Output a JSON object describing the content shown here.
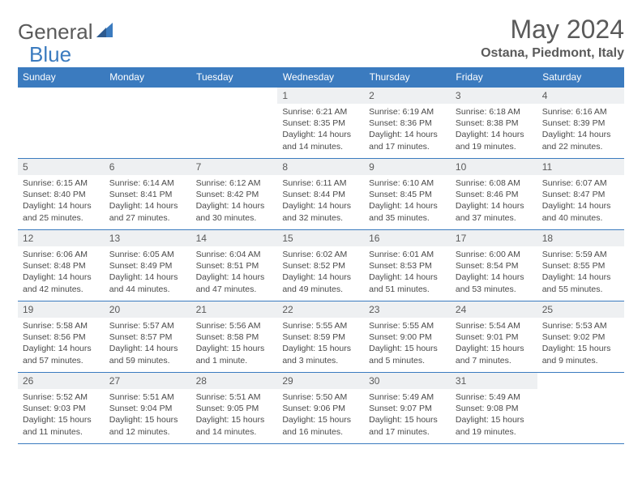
{
  "brand": {
    "part1": "General",
    "part2": "Blue"
  },
  "title": "May 2024",
  "location": "Ostana, Piedmont, Italy",
  "colors": {
    "header_bg": "#3b7bbf",
    "header_text": "#ffffff",
    "daynum_bg": "#eef0f2",
    "text_muted": "#5a5a5a",
    "detail_text": "#4a4a4a",
    "border": "#3b7bbf",
    "page_bg": "#ffffff"
  },
  "typography": {
    "title_fontsize": 32,
    "location_fontsize": 16,
    "dayhead_fontsize": 12,
    "daynum_fontsize": 12,
    "detail_fontsize": 10.5
  },
  "day_headers": [
    "Sunday",
    "Monday",
    "Tuesday",
    "Wednesday",
    "Thursday",
    "Friday",
    "Saturday"
  ],
  "weeks": [
    [
      null,
      null,
      null,
      {
        "n": "1",
        "sr": "Sunrise: 6:21 AM",
        "ss": "Sunset: 8:35 PM",
        "d1": "Daylight: 14 hours",
        "d2": "and 14 minutes."
      },
      {
        "n": "2",
        "sr": "Sunrise: 6:19 AM",
        "ss": "Sunset: 8:36 PM",
        "d1": "Daylight: 14 hours",
        "d2": "and 17 minutes."
      },
      {
        "n": "3",
        "sr": "Sunrise: 6:18 AM",
        "ss": "Sunset: 8:38 PM",
        "d1": "Daylight: 14 hours",
        "d2": "and 19 minutes."
      },
      {
        "n": "4",
        "sr": "Sunrise: 6:16 AM",
        "ss": "Sunset: 8:39 PM",
        "d1": "Daylight: 14 hours",
        "d2": "and 22 minutes."
      }
    ],
    [
      {
        "n": "5",
        "sr": "Sunrise: 6:15 AM",
        "ss": "Sunset: 8:40 PM",
        "d1": "Daylight: 14 hours",
        "d2": "and 25 minutes."
      },
      {
        "n": "6",
        "sr": "Sunrise: 6:14 AM",
        "ss": "Sunset: 8:41 PM",
        "d1": "Daylight: 14 hours",
        "d2": "and 27 minutes."
      },
      {
        "n": "7",
        "sr": "Sunrise: 6:12 AM",
        "ss": "Sunset: 8:42 PM",
        "d1": "Daylight: 14 hours",
        "d2": "and 30 minutes."
      },
      {
        "n": "8",
        "sr": "Sunrise: 6:11 AM",
        "ss": "Sunset: 8:44 PM",
        "d1": "Daylight: 14 hours",
        "d2": "and 32 minutes."
      },
      {
        "n": "9",
        "sr": "Sunrise: 6:10 AM",
        "ss": "Sunset: 8:45 PM",
        "d1": "Daylight: 14 hours",
        "d2": "and 35 minutes."
      },
      {
        "n": "10",
        "sr": "Sunrise: 6:08 AM",
        "ss": "Sunset: 8:46 PM",
        "d1": "Daylight: 14 hours",
        "d2": "and 37 minutes."
      },
      {
        "n": "11",
        "sr": "Sunrise: 6:07 AM",
        "ss": "Sunset: 8:47 PM",
        "d1": "Daylight: 14 hours",
        "d2": "and 40 minutes."
      }
    ],
    [
      {
        "n": "12",
        "sr": "Sunrise: 6:06 AM",
        "ss": "Sunset: 8:48 PM",
        "d1": "Daylight: 14 hours",
        "d2": "and 42 minutes."
      },
      {
        "n": "13",
        "sr": "Sunrise: 6:05 AM",
        "ss": "Sunset: 8:49 PM",
        "d1": "Daylight: 14 hours",
        "d2": "and 44 minutes."
      },
      {
        "n": "14",
        "sr": "Sunrise: 6:04 AM",
        "ss": "Sunset: 8:51 PM",
        "d1": "Daylight: 14 hours",
        "d2": "and 47 minutes."
      },
      {
        "n": "15",
        "sr": "Sunrise: 6:02 AM",
        "ss": "Sunset: 8:52 PM",
        "d1": "Daylight: 14 hours",
        "d2": "and 49 minutes."
      },
      {
        "n": "16",
        "sr": "Sunrise: 6:01 AM",
        "ss": "Sunset: 8:53 PM",
        "d1": "Daylight: 14 hours",
        "d2": "and 51 minutes."
      },
      {
        "n": "17",
        "sr": "Sunrise: 6:00 AM",
        "ss": "Sunset: 8:54 PM",
        "d1": "Daylight: 14 hours",
        "d2": "and 53 minutes."
      },
      {
        "n": "18",
        "sr": "Sunrise: 5:59 AM",
        "ss": "Sunset: 8:55 PM",
        "d1": "Daylight: 14 hours",
        "d2": "and 55 minutes."
      }
    ],
    [
      {
        "n": "19",
        "sr": "Sunrise: 5:58 AM",
        "ss": "Sunset: 8:56 PM",
        "d1": "Daylight: 14 hours",
        "d2": "and 57 minutes."
      },
      {
        "n": "20",
        "sr": "Sunrise: 5:57 AM",
        "ss": "Sunset: 8:57 PM",
        "d1": "Daylight: 14 hours",
        "d2": "and 59 minutes."
      },
      {
        "n": "21",
        "sr": "Sunrise: 5:56 AM",
        "ss": "Sunset: 8:58 PM",
        "d1": "Daylight: 15 hours",
        "d2": "and 1 minute."
      },
      {
        "n": "22",
        "sr": "Sunrise: 5:55 AM",
        "ss": "Sunset: 8:59 PM",
        "d1": "Daylight: 15 hours",
        "d2": "and 3 minutes."
      },
      {
        "n": "23",
        "sr": "Sunrise: 5:55 AM",
        "ss": "Sunset: 9:00 PM",
        "d1": "Daylight: 15 hours",
        "d2": "and 5 minutes."
      },
      {
        "n": "24",
        "sr": "Sunrise: 5:54 AM",
        "ss": "Sunset: 9:01 PM",
        "d1": "Daylight: 15 hours",
        "d2": "and 7 minutes."
      },
      {
        "n": "25",
        "sr": "Sunrise: 5:53 AM",
        "ss": "Sunset: 9:02 PM",
        "d1": "Daylight: 15 hours",
        "d2": "and 9 minutes."
      }
    ],
    [
      {
        "n": "26",
        "sr": "Sunrise: 5:52 AM",
        "ss": "Sunset: 9:03 PM",
        "d1": "Daylight: 15 hours",
        "d2": "and 11 minutes."
      },
      {
        "n": "27",
        "sr": "Sunrise: 5:51 AM",
        "ss": "Sunset: 9:04 PM",
        "d1": "Daylight: 15 hours",
        "d2": "and 12 minutes."
      },
      {
        "n": "28",
        "sr": "Sunrise: 5:51 AM",
        "ss": "Sunset: 9:05 PM",
        "d1": "Daylight: 15 hours",
        "d2": "and 14 minutes."
      },
      {
        "n": "29",
        "sr": "Sunrise: 5:50 AM",
        "ss": "Sunset: 9:06 PM",
        "d1": "Daylight: 15 hours",
        "d2": "and 16 minutes."
      },
      {
        "n": "30",
        "sr": "Sunrise: 5:49 AM",
        "ss": "Sunset: 9:07 PM",
        "d1": "Daylight: 15 hours",
        "d2": "and 17 minutes."
      },
      {
        "n": "31",
        "sr": "Sunrise: 5:49 AM",
        "ss": "Sunset: 9:08 PM",
        "d1": "Daylight: 15 hours",
        "d2": "and 19 minutes."
      },
      null
    ]
  ]
}
